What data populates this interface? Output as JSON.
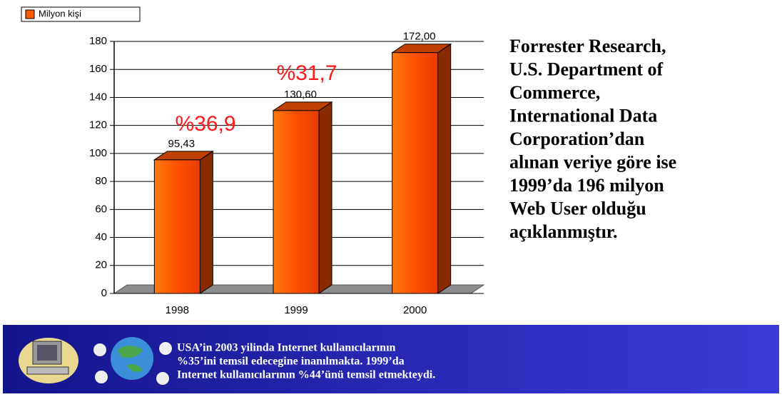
{
  "chart_data": {
    "type": "bar",
    "legend": "Milyon kişi",
    "categories": [
      "1998",
      "1999",
      "2000"
    ],
    "values": [
      95.43,
      130.6,
      172
    ],
    "value_labels": [
      "95,43",
      "130,60",
      "172,00"
    ],
    "color": "#ff5a00",
    "annotations": [
      "%36,9",
      "%31,7"
    ],
    "ylim": [
      0,
      180
    ],
    "yticks": [
      0,
      20,
      40,
      60,
      80,
      100,
      120,
      140,
      160,
      180
    ],
    "grid": true
  },
  "side_text": [
    "Forrester Research,",
    "U.S. Department of",
    "Commerce,",
    "International Data",
    "Corporation’dan",
    "alınan  veriye göre ise",
    "1999’da 196 milyon",
    "Web User olduğu",
    "açıklanmıştır."
  ],
  "banner": [
    "USA’in 2003 yilinda Internet kullanıcılarının",
    " %35’ini temsil edecegine inanılmakta. 1999’da",
    "Internet kullanıcılarının %44’ünü temsil etmekteydi."
  ]
}
